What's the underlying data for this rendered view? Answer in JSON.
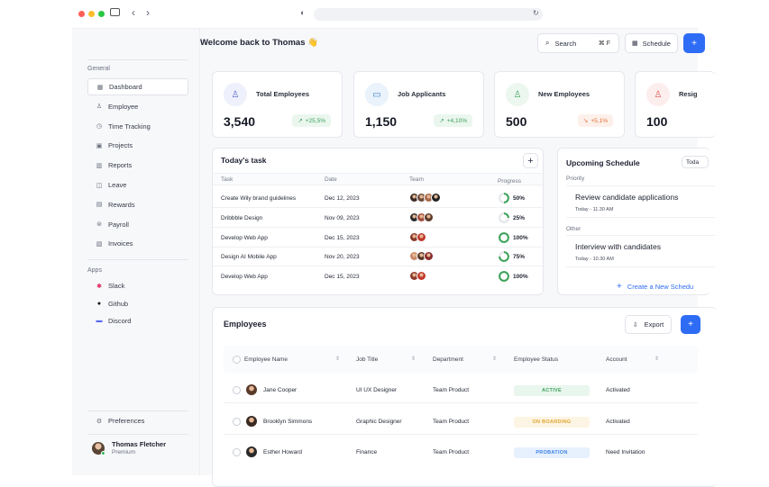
{
  "browser": {
    "colors": [
      "#ff5f57",
      "#febc2e",
      "#28c840"
    ]
  },
  "sidebar": {
    "general_label": "General",
    "items": [
      {
        "label": "Dashboard",
        "icon": "grid-icon"
      },
      {
        "label": "Employee",
        "icon": "user-icon"
      },
      {
        "label": "Time Tracking",
        "icon": "clock-icon"
      },
      {
        "label": "Projects",
        "icon": "folder-icon"
      },
      {
        "label": "Reports",
        "icon": "chart-icon"
      },
      {
        "label": "Leave",
        "icon": "leave-icon"
      },
      {
        "label": "Rewards",
        "icon": "gift-icon"
      },
      {
        "label": "Payroll",
        "icon": "dollar-icon"
      },
      {
        "label": "Invoices",
        "icon": "invoice-icon"
      }
    ],
    "apps_label": "Apps",
    "apps": [
      {
        "label": "Slack",
        "icon": "slack-icon"
      },
      {
        "label": "Github",
        "icon": "github-icon"
      },
      {
        "label": "Discord",
        "icon": "discord-icon"
      }
    ],
    "preferences": "Preferences",
    "user": {
      "name": "Thomas Fletcher",
      "plan": "Premium"
    }
  },
  "header": {
    "greeting": "Welcome back to Thomas 👋",
    "search": "Search",
    "shortcut": "⌘ F",
    "schedule": "Schedule",
    "add": "+"
  },
  "stats": [
    {
      "label": "Total  Employees",
      "value": "3,540",
      "change": "+25,5%",
      "trend": "up",
      "icon": "users-icon",
      "tint": "#eef0fb",
      "ink": "#5b63c9"
    },
    {
      "label": "Job Applicants",
      "value": "1,150",
      "change": "+4,10%",
      "trend": "up",
      "icon": "briefcase-icon",
      "tint": "#eaf2fb",
      "ink": "#3b82c4"
    },
    {
      "label": "New  Employees",
      "value": "500",
      "change": "+5,1%",
      "trend": "down",
      "icon": "user-plus-icon",
      "tint": "#ecf7ef",
      "ink": "#3fa35b"
    },
    {
      "label": "Resig",
      "value": "100",
      "change": "",
      "trend": "",
      "icon": "user-minus-icon",
      "tint": "#fdeeee",
      "ink": "#d9534f"
    }
  ],
  "tasks": {
    "title": "Today's task",
    "add": "+",
    "columns": [
      "Task",
      "Date",
      "Team",
      "Progress"
    ],
    "rows": [
      {
        "task": "Create Wily brand guidelines",
        "date": "Dec 12, 2023",
        "progress": "50%",
        "value": 50
      },
      {
        "task": "Dribbble Design",
        "date": "Nov 09, 2023",
        "progress": "25%",
        "value": 25
      },
      {
        "task": "Develop Web App",
        "date": "Dec 15, 2023",
        "progress": "100%",
        "value": 100
      },
      {
        "task": "Design AI Mobile App",
        "date": "Nov 20, 2023",
        "progress": "75%",
        "value": 75
      },
      {
        "task": "Develop Web App",
        "date": "Dec 15, 2023",
        "progress": "100%",
        "value": 100
      }
    ]
  },
  "schedule": {
    "title": "Upcoming Schedule",
    "filter": "Toda",
    "priority_label": "Priority",
    "priority_item": {
      "title": "Review candidate applications",
      "time": "Today - 11.30 AM"
    },
    "other_label": "Other",
    "other_item": {
      "title": "Interview with candidates",
      "time": "Today - 10.30 AM"
    },
    "create": "Create a New Schedu"
  },
  "employees": {
    "title": "Employees",
    "export": "Export",
    "add": "+",
    "columns": [
      "Employee Name",
      "Job Title",
      "Department",
      "Employee Status",
      "Account"
    ],
    "rows": [
      {
        "name": "Jane Cooper",
        "job": "UI UX Designer",
        "dept": "Team Product",
        "status": "ACTIVE",
        "account": "Activated"
      },
      {
        "name": "Brooklyn Simmons",
        "job": "Graphic Designer",
        "dept": "Team Product",
        "status": "ON BOARDING",
        "account": "Activated"
      },
      {
        "name": "Esther Howard",
        "job": "Finance",
        "dept": "Team Product",
        "status": "PROBATION",
        "account": "Need Invitation"
      }
    ]
  }
}
